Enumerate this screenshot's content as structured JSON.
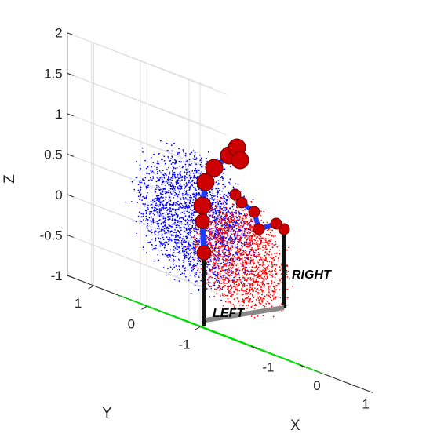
{
  "chart_data": {
    "type": "scatter",
    "title": "",
    "xlabel": "X",
    "ylabel": "Y",
    "zlabel": "Z",
    "xlim": [
      -1.5,
      1.5
    ],
    "ylim": [
      -1.5,
      1.5
    ],
    "zlim": [
      -1,
      2
    ],
    "grid": true,
    "x_ticks": [
      "-1",
      "0",
      "1"
    ],
    "y_ticks": [
      "-1",
      "0",
      "1"
    ],
    "z_ticks": [
      "-1",
      "-0.5",
      "0",
      "0.5",
      "1",
      "1.5",
      "2"
    ],
    "annotations": [
      {
        "text": "LEFT",
        "x": -0.3,
        "y": 0.3,
        "z": -1
      },
      {
        "text": "RIGHT",
        "x": 0.6,
        "y": 0.5,
        "z": -0.6
      }
    ],
    "series": [
      {
        "kind": "workspace-points",
        "color": "#0000ff",
        "center": [
          -0.45,
          0.05,
          0.3
        ],
        "radius": 1.0
      },
      {
        "kind": "workspace-points",
        "color": "#ff0000",
        "center": [
          0.55,
          0.1,
          0.05
        ],
        "radius": 0.8
      },
      {
        "kind": "floor-grid",
        "color": "#00dd00",
        "z": -1,
        "range": [
          -1.0,
          1.0
        ]
      },
      {
        "kind": "robot-arm",
        "color": "#cc0000"
      }
    ]
  }
}
